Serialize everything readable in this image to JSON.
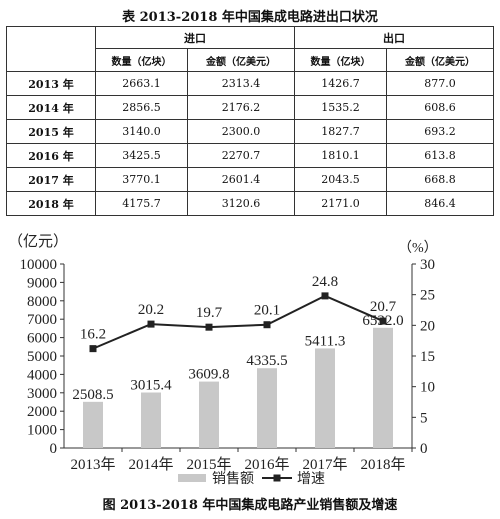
{
  "table": {
    "title": "表  2013-2018 年中国集成电路进出口状况",
    "group_headers": [
      "进口",
      "出口"
    ],
    "sub_headers": [
      "数量（亿块）",
      "金额（亿美元）",
      "数量（亿块）",
      "金额（亿美元）"
    ],
    "rows": [
      {
        "year": "2013 年",
        "cells": [
          "2663.1",
          "2313.4",
          "1426.7",
          "877.0"
        ]
      },
      {
        "year": "2014 年",
        "cells": [
          "2856.5",
          "2176.2",
          "1535.2",
          "608.6"
        ]
      },
      {
        "year": "2015 年",
        "cells": [
          "3140.0",
          "2300.0",
          "1827.7",
          "693.2"
        ]
      },
      {
        "year": "2016 年",
        "cells": [
          "3425.5",
          "2270.7",
          "1810.1",
          "613.8"
        ]
      },
      {
        "year": "2017 年",
        "cells": [
          "3770.1",
          "2601.4",
          "2043.5",
          "668.8"
        ]
      },
      {
        "year": "2018 年",
        "cells": [
          "4175.7",
          "3120.6",
          "2171.0",
          "846.4"
        ]
      }
    ]
  },
  "chart_data": {
    "type": "bar",
    "categories": [
      "2013年",
      "2014年",
      "2015年",
      "2016年",
      "2017年",
      "2018年"
    ],
    "series": [
      {
        "name": "销售额",
        "type": "bar",
        "axis": "left",
        "values": [
          2508.5,
          3015.4,
          3609.8,
          4335.5,
          5411.3,
          6532.0
        ],
        "labels": [
          "2508.5",
          "3015.4",
          "3609.8",
          "4335.5",
          "5411.3",
          "6532.0"
        ],
        "color": "#c8c8c8"
      },
      {
        "name": "增速",
        "type": "line",
        "axis": "right",
        "values": [
          16.2,
          20.2,
          19.7,
          20.1,
          24.8,
          20.7
        ],
        "labels": [
          "16.2",
          "20.2",
          "19.7",
          "20.1",
          "24.8",
          "20.7"
        ],
        "color": "#222222"
      }
    ],
    "left_axis": {
      "unit": "（亿元）",
      "ylim": [
        0,
        10000
      ],
      "ticks": [
        "0",
        "1000",
        "2000",
        "3000",
        "4000",
        "5000",
        "6000",
        "7000",
        "8000",
        "9000",
        "10000"
      ]
    },
    "right_axis": {
      "unit": "（%）",
      "ylim": [
        0,
        30
      ],
      "ticks": [
        "0",
        "5",
        "10",
        "15",
        "20",
        "25",
        "30"
      ]
    },
    "legend_placement": "bottom-center",
    "grid": false
  },
  "figure": {
    "caption": "图  2013-2018 年中国集成电路产业销售额及增速"
  }
}
